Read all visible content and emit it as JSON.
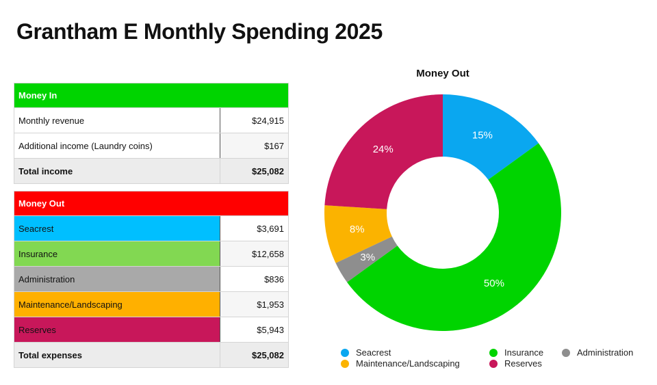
{
  "page": {
    "title": "Grantham E Monthly Spending 2025"
  },
  "money_in": {
    "header": "Money In",
    "header_color": "#00d400",
    "rows": [
      {
        "label": "Monthly revenue",
        "value": "$24,915"
      },
      {
        "label": "Additional income (Laundry coins)",
        "value": "$167"
      }
    ],
    "total": {
      "label": "Total income",
      "value": "$25,082"
    }
  },
  "money_out": {
    "header": "Money Out",
    "header_color": "#ff0000",
    "rows": [
      {
        "label": "Seacrest",
        "value": "$3,691",
        "color": "#00bfff"
      },
      {
        "label": "Insurance",
        "value": "$12,658",
        "color": "#82d852"
      },
      {
        "label": "Administration",
        "value": "$836",
        "color": "#a9a9a9"
      },
      {
        "label": "Maintenance/Landscaping",
        "value": "$1,953",
        "color": "#ffb000"
      },
      {
        "label": "Reserves",
        "value": "$5,943",
        "color": "#c8175a"
      }
    ],
    "total": {
      "label": "Total expenses",
      "value": "$25,082"
    }
  },
  "chart_data": {
    "type": "pie",
    "title": "Money Out",
    "donut": true,
    "slices": [
      {
        "name": "Seacrest",
        "value": 15,
        "label": "15%",
        "color": "#0aa7f0"
      },
      {
        "name": "Insurance",
        "value": 50,
        "label": "50%",
        "color": "#00d400"
      },
      {
        "name": "Administration",
        "value": 3,
        "label": "3%",
        "color": "#8e8e8e"
      },
      {
        "name": "Maintenance/Landscaping",
        "value": 8,
        "label": "8%",
        "color": "#fbb300"
      },
      {
        "name": "Reserves",
        "value": 24,
        "label": "24%",
        "color": "#c8175a"
      }
    ],
    "legend": [
      {
        "name": "Seacrest",
        "color": "#0aa7f0"
      },
      {
        "name": "Insurance",
        "color": "#00d400"
      },
      {
        "name": "Administration",
        "color": "#8e8e8e"
      },
      {
        "name": "Maintenance/Landscaping",
        "color": "#fbb300"
      },
      {
        "name": "Reserves",
        "color": "#c8175a"
      }
    ],
    "legend_position": "bottom"
  }
}
